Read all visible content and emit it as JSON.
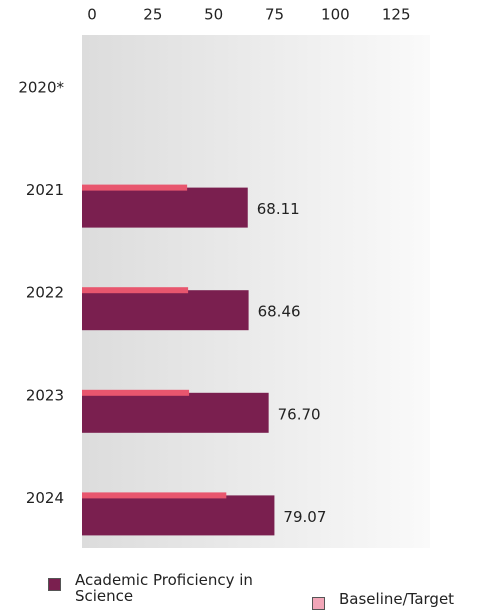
{
  "chart_data": {
    "type": "bar",
    "orientation": "horizontal",
    "categories": [
      "2020*",
      "2021",
      "2022",
      "2023",
      "2024"
    ],
    "series": [
      {
        "name": "Academic Proficiency in Science",
        "color": "#7a1f4f",
        "values": [
          null,
          68.11,
          68.46,
          76.7,
          79.07
        ],
        "value_labels": [
          null,
          "68.11",
          "68.46",
          "76.70",
          "79.07"
        ]
      },
      {
        "name": "Baseline/Target",
        "color": "#e8566e",
        "values": [
          null,
          43.2,
          43.6,
          44,
          59.3
        ]
      }
    ],
    "xlim": [
      0,
      143
    ],
    "xticks": [
      0,
      25,
      50,
      75,
      100,
      125
    ],
    "legend": "bottom"
  }
}
